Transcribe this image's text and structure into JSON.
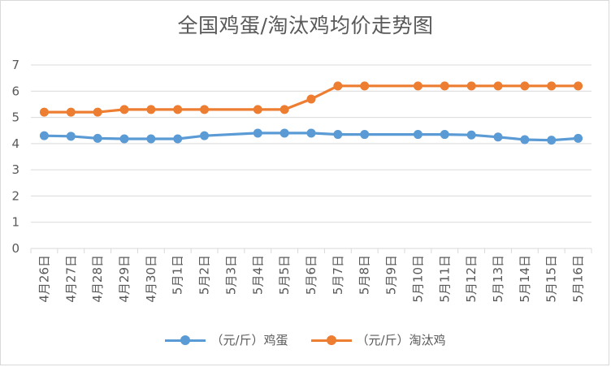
{
  "chart_data": {
    "type": "line",
    "title": "全国鸡蛋/淘汰鸡均价走势图",
    "categories": [
      "4月26日",
      "4月27日",
      "4月28日",
      "4月29日",
      "4月30日",
      "5月1日",
      "5月2日",
      "5月3日",
      "5月4日",
      "5月5日",
      "5月6日",
      "5月7日",
      "5月8日",
      "5月9日",
      "5月10日",
      "5月11日",
      "5月12日",
      "5月13日",
      "5月14日",
      "5月15日",
      "5月16日"
    ],
    "series": [
      {
        "name": "（元/斤）鸡蛋",
        "color": "#5b9bd5",
        "values": [
          4.3,
          4.28,
          4.2,
          4.18,
          4.18,
          4.18,
          4.3,
          null,
          4.4,
          4.4,
          4.4,
          4.35,
          4.35,
          null,
          4.35,
          4.35,
          4.33,
          4.25,
          4.15,
          4.13,
          4.2
        ]
      },
      {
        "name": "（元/斤）淘汰鸡",
        "color": "#ed7d31",
        "values": [
          5.2,
          5.2,
          5.2,
          5.3,
          5.3,
          5.3,
          5.3,
          null,
          5.3,
          5.3,
          5.7,
          6.2,
          6.2,
          null,
          6.2,
          6.2,
          6.2,
          6.2,
          6.2,
          6.2,
          6.2
        ]
      }
    ],
    "ylim": [
      0,
      7
    ],
    "yticks": [
      0,
      1,
      2,
      3,
      4,
      5,
      6,
      7
    ],
    "grid": true,
    "legend": "bottom"
  }
}
